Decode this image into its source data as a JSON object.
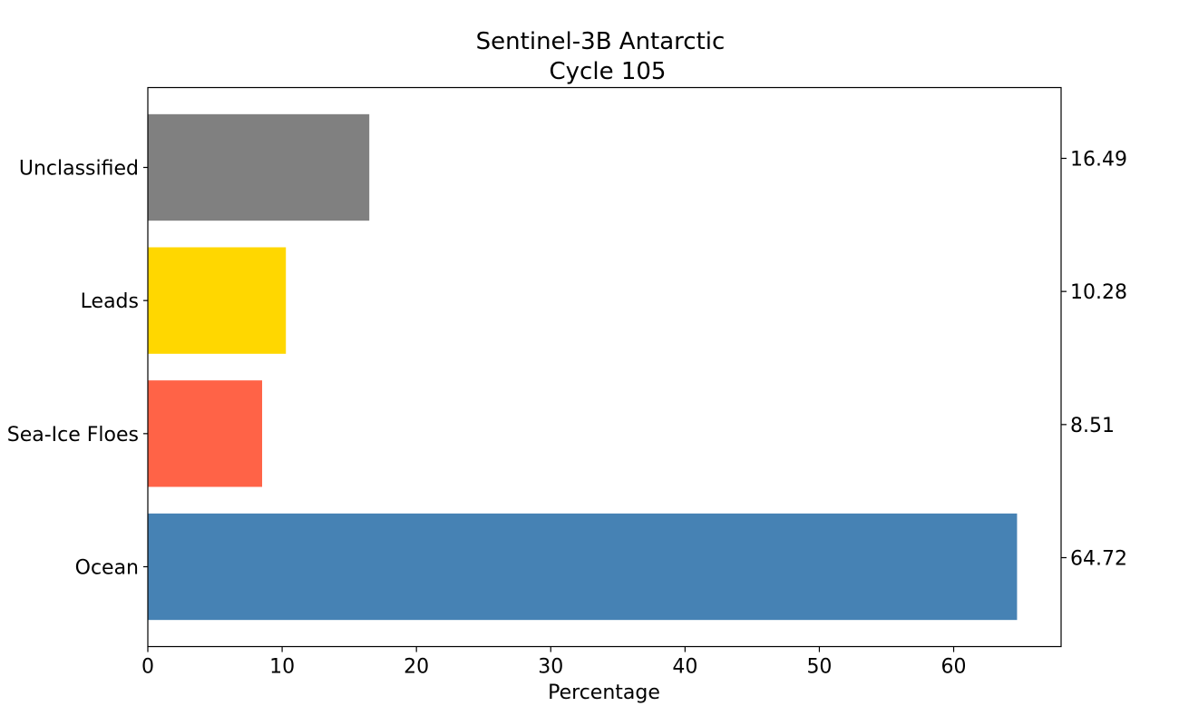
{
  "chart_data": {
    "type": "bar",
    "orientation": "horizontal",
    "title": "Sentinel-3B Antarctic",
    "subtitle": "Cycle 105",
    "xlabel": "Percentage",
    "ylabel": "",
    "xlim": [
      0,
      68
    ],
    "x_ticks": [
      0,
      10,
      20,
      30,
      40,
      50,
      60
    ],
    "grid": false,
    "categories": [
      "Ocean",
      "Sea-Ice Floes",
      "Leads",
      "Unclassified"
    ],
    "values": [
      64.72,
      8.51,
      10.28,
      16.49
    ],
    "colors": [
      "#4682b4",
      "#ff6347",
      "#ffd700",
      "#808080"
    ],
    "right_tick_labels": [
      "64.72",
      "8.51",
      "10.28",
      "16.49"
    ]
  }
}
